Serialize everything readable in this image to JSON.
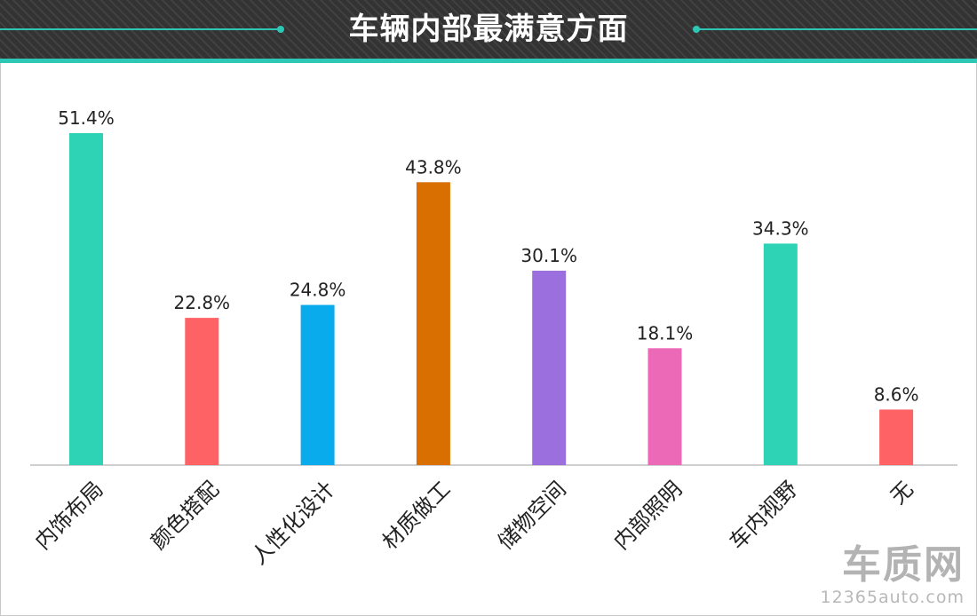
{
  "header": {
    "title": "车辆内部最满意方面"
  },
  "colors": {
    "accent": "#2ec7b6",
    "header_bg": "#333333"
  },
  "watermark": {
    "logo": "车质网",
    "url": "12365auto.com"
  },
  "chart_data": {
    "type": "bar",
    "title": "车辆内部最满意方面",
    "xlabel": "",
    "ylabel": "",
    "grid": false,
    "legend": "none",
    "ylim": [
      0,
      55
    ],
    "categories": [
      "内饰布局",
      "颜色搭配",
      "人性化设计",
      "材质做工",
      "储物空间",
      "内部照明",
      "车内视野",
      "无"
    ],
    "values": [
      51.4,
      22.8,
      24.8,
      43.8,
      30.1,
      18.1,
      34.3,
      8.6
    ],
    "labels": [
      "51.4%",
      "22.8%",
      "24.8%",
      "43.8%",
      "30.1%",
      "18.1%",
      "34.3%",
      "8.6%"
    ],
    "bar_colors": [
      "#2ed3b6",
      "#ff6264",
      "#0aabec",
      "#d86f00",
      "#9c6fdf",
      "#ec69b8",
      "#2ed3b6",
      "#ff6264"
    ]
  }
}
